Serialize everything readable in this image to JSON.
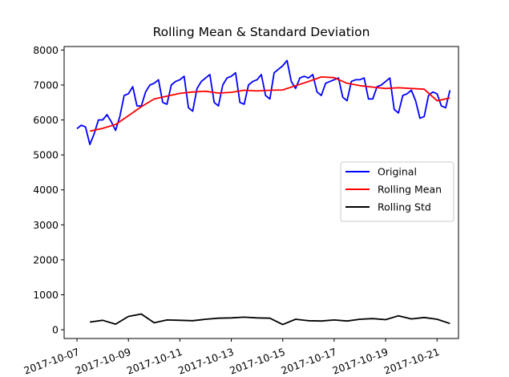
{
  "chart_data": {
    "type": "line",
    "title": "Rolling Mean & Standard Deviation",
    "xlabel": "",
    "ylabel": "",
    "x_range": [
      "2017-10-06T12:00",
      "2017-10-21T20:00"
    ],
    "ylim": [
      -250,
      8100
    ],
    "x_ticks": [
      "2017-10-07",
      "2017-10-09",
      "2017-10-11",
      "2017-10-13",
      "2017-10-15",
      "2017-10-17",
      "2017-10-19",
      "2017-10-21"
    ],
    "y_ticks": [
      0,
      1000,
      2000,
      3000,
      4000,
      5000,
      6000,
      7000,
      8000
    ],
    "grid": false,
    "legend_position": "center-right",
    "series": [
      {
        "name": "Original",
        "color": "#0000ff",
        "x": [
          "2017-10-07T00:00",
          "2017-10-07T04:00",
          "2017-10-07T08:00",
          "2017-10-07T12:00",
          "2017-10-07T16:00",
          "2017-10-07T20:00",
          "2017-10-08T00:00",
          "2017-10-08T04:00",
          "2017-10-08T08:00",
          "2017-10-08T12:00",
          "2017-10-08T16:00",
          "2017-10-08T20:00",
          "2017-10-09T00:00",
          "2017-10-09T04:00",
          "2017-10-09T08:00",
          "2017-10-09T12:00",
          "2017-10-09T16:00",
          "2017-10-09T20:00",
          "2017-10-10T00:00",
          "2017-10-10T04:00",
          "2017-10-10T08:00",
          "2017-10-10T12:00",
          "2017-10-10T16:00",
          "2017-10-10T20:00",
          "2017-10-11T00:00",
          "2017-10-11T04:00",
          "2017-10-11T08:00",
          "2017-10-11T12:00",
          "2017-10-11T16:00",
          "2017-10-11T20:00",
          "2017-10-12T00:00",
          "2017-10-12T04:00",
          "2017-10-12T08:00",
          "2017-10-12T12:00",
          "2017-10-12T16:00",
          "2017-10-12T20:00",
          "2017-10-13T00:00",
          "2017-10-13T04:00",
          "2017-10-13T08:00",
          "2017-10-13T12:00",
          "2017-10-13T16:00",
          "2017-10-13T20:00",
          "2017-10-14T00:00",
          "2017-10-14T04:00",
          "2017-10-14T08:00",
          "2017-10-14T12:00",
          "2017-10-14T16:00",
          "2017-10-14T20:00",
          "2017-10-15T00:00",
          "2017-10-15T04:00",
          "2017-10-15T08:00",
          "2017-10-15T12:00",
          "2017-10-15T16:00",
          "2017-10-15T20:00",
          "2017-10-16T00:00",
          "2017-10-16T04:00",
          "2017-10-16T08:00",
          "2017-10-16T12:00",
          "2017-10-16T16:00",
          "2017-10-16T20:00",
          "2017-10-17T00:00",
          "2017-10-17T04:00",
          "2017-10-17T08:00",
          "2017-10-17T12:00",
          "2017-10-17T16:00",
          "2017-10-17T20:00",
          "2017-10-18T00:00",
          "2017-10-18T04:00",
          "2017-10-18T08:00",
          "2017-10-18T12:00",
          "2017-10-18T16:00",
          "2017-10-18T20:00",
          "2017-10-19T00:00",
          "2017-10-19T04:00",
          "2017-10-19T08:00",
          "2017-10-19T12:00",
          "2017-10-19T16:00",
          "2017-10-19T20:00",
          "2017-10-20T00:00",
          "2017-10-20T04:00",
          "2017-10-20T08:00",
          "2017-10-20T12:00",
          "2017-10-20T16:00",
          "2017-10-20T20:00",
          "2017-10-21T00:00",
          "2017-10-21T04:00",
          "2017-10-21T08:00",
          "2017-10-21T12:00"
        ],
        "values": [
          5750,
          5850,
          5800,
          5300,
          5600,
          6000,
          6000,
          6150,
          5950,
          5700,
          6100,
          6700,
          6750,
          6950,
          6400,
          6400,
          6800,
          7000,
          7050,
          7150,
          6500,
          6450,
          7000,
          7100,
          7150,
          7250,
          6350,
          6250,
          6900,
          7100,
          7200,
          7300,
          6500,
          6400,
          7000,
          7200,
          7250,
          7350,
          6500,
          6450,
          7000,
          7100,
          7150,
          7300,
          6700,
          6600,
          7350,
          7450,
          7550,
          7700,
          7100,
          6900,
          7200,
          7250,
          7200,
          7300,
          6800,
          6700,
          7050,
          7100,
          7150,
          7200,
          6650,
          6550,
          7100,
          7150,
          7150,
          7200,
          6600,
          6600,
          6950,
          7000,
          7100,
          7200,
          6300,
          6200,
          6700,
          6750,
          6850,
          6550,
          6050,
          6100,
          6700,
          6800,
          6750,
          6400,
          6350,
          6850
        ]
      },
      {
        "name": "Rolling Mean",
        "color": "#ff0000",
        "x": [
          "2017-10-07T12:00",
          "2017-10-08T00:00",
          "2017-10-08T12:00",
          "2017-10-09T00:00",
          "2017-10-09T12:00",
          "2017-10-10T00:00",
          "2017-10-10T12:00",
          "2017-10-11T00:00",
          "2017-10-11T12:00",
          "2017-10-12T00:00",
          "2017-10-12T12:00",
          "2017-10-13T00:00",
          "2017-10-13T12:00",
          "2017-10-14T00:00",
          "2017-10-14T12:00",
          "2017-10-15T00:00",
          "2017-10-15T12:00",
          "2017-10-16T00:00",
          "2017-10-16T12:00",
          "2017-10-17T00:00",
          "2017-10-17T12:00",
          "2017-10-18T00:00",
          "2017-10-18T12:00",
          "2017-10-19T00:00",
          "2017-10-19T12:00",
          "2017-10-20T00:00",
          "2017-10-20T12:00",
          "2017-10-21T00:00",
          "2017-10-21T12:00"
        ],
        "values": [
          5680,
          5760,
          5870,
          6120,
          6380,
          6600,
          6680,
          6760,
          6800,
          6820,
          6770,
          6790,
          6850,
          6830,
          6850,
          6860,
          6980,
          7100,
          7230,
          7210,
          7050,
          6980,
          6940,
          6900,
          6920,
          6900,
          6880,
          6550,
          6630
        ]
      },
      {
        "name": "Rolling Std",
        "color": "#000000",
        "x": [
          "2017-10-07T12:00",
          "2017-10-08T00:00",
          "2017-10-08T12:00",
          "2017-10-09T00:00",
          "2017-10-09T12:00",
          "2017-10-10T00:00",
          "2017-10-10T12:00",
          "2017-10-11T00:00",
          "2017-10-11T12:00",
          "2017-10-12T00:00",
          "2017-10-12T12:00",
          "2017-10-13T00:00",
          "2017-10-13T12:00",
          "2017-10-14T00:00",
          "2017-10-14T12:00",
          "2017-10-15T00:00",
          "2017-10-15T12:00",
          "2017-10-16T00:00",
          "2017-10-16T12:00",
          "2017-10-17T00:00",
          "2017-10-17T12:00",
          "2017-10-18T00:00",
          "2017-10-18T12:00",
          "2017-10-19T00:00",
          "2017-10-19T12:00",
          "2017-10-20T00:00",
          "2017-10-20T12:00",
          "2017-10-21T00:00",
          "2017-10-21T12:00"
        ],
        "values": [
          220,
          270,
          160,
          380,
          450,
          200,
          280,
          270,
          260,
          300,
          330,
          340,
          360,
          340,
          330,
          150,
          300,
          260,
          250,
          280,
          250,
          300,
          320,
          290,
          400,
          310,
          350,
          300,
          180
        ]
      }
    ]
  }
}
